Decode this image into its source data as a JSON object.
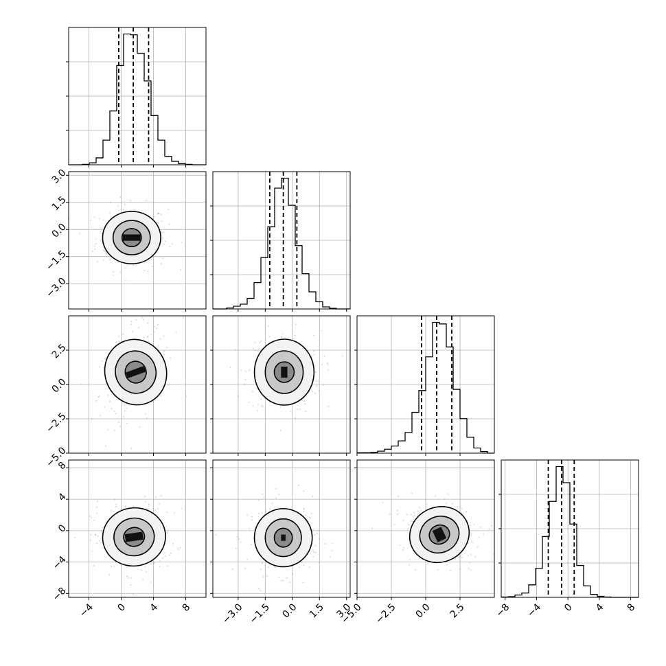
{
  "chart_data": {
    "type": "corner",
    "parameters": [
      {
        "range": [
          -6.5,
          10.5
        ],
        "ticks": [
          -4,
          0,
          4,
          8
        ],
        "tick_labels": [
          "−4",
          "0",
          "4",
          "8"
        ],
        "quantiles": [
          -0.3,
          1.5,
          3.4
        ],
        "center": 1.5,
        "sigma": 1.9
      },
      {
        "range": [
          -4.4,
          3.2
        ],
        "ticks": [
          -3.0,
          -1.5,
          0.0,
          1.5,
          3.0
        ],
        "tick_labels": [
          "−3.0",
          "−1.5",
          "0.0",
          "1.5",
          "3.0"
        ],
        "quantiles": [
          -1.25,
          -0.5,
          0.25
        ],
        "center": -0.5,
        "sigma": 0.75
      },
      {
        "range": [
          -5.0,
          5.0
        ],
        "ticks": [
          -5.0,
          -2.5,
          0.0,
          2.5
        ],
        "tick_labels": [
          "−5.0",
          "−2.5",
          "0.0",
          "2.5"
        ],
        "quantiles": [
          -0.3,
          0.8,
          1.9
        ],
        "center": 0.8,
        "sigma": 1.1
      },
      {
        "range": [
          -8.5,
          9.0
        ],
        "ticks": [
          -8,
          -4,
          0,
          4,
          8
        ],
        "tick_labels": [
          "−8",
          "−4",
          "0",
          "4",
          "8"
        ],
        "quantiles": [
          -2.5,
          -0.8,
          0.8
        ],
        "center": -0.8,
        "sigma": 1.7
      }
    ],
    "histograms": [
      {
        "bins_edges": [
          -6.5,
          -5.65,
          -4.8,
          -3.95,
          -3.1,
          -2.25,
          -1.4,
          -0.55,
          0.3,
          1.15,
          2.0,
          2.85,
          3.7,
          4.55,
          5.4,
          6.25,
          7.1,
          7.95,
          8.8,
          9.65,
          10.5
        ],
        "counts": [
          0,
          0,
          1,
          5,
          18,
          64,
          140,
          258,
          340,
          338,
          290,
          218,
          128,
          64,
          22,
          9,
          3,
          1,
          0,
          0
        ]
      },
      {
        "bins_edges": [
          -4.4,
          -4.02,
          -3.64,
          -3.26,
          -2.88,
          -2.5,
          -2.12,
          -1.74,
          -1.36,
          -0.98,
          -0.6,
          -0.22,
          0.16,
          0.54,
          0.92,
          1.3,
          1.68,
          2.06,
          2.44,
          2.82,
          3.2
        ],
        "counts": [
          0,
          0,
          3,
          8,
          14,
          31,
          77,
          150,
          240,
          353,
          382,
          303,
          185,
          103,
          50,
          21,
          6,
          2,
          0,
          0
        ]
      },
      {
        "bins_edges": [
          -5.0,
          -4.5,
          -4.0,
          -3.5,
          -3.0,
          -2.5,
          -2.0,
          -1.5,
          -1.0,
          -0.5,
          0.0,
          0.5,
          1.0,
          1.5,
          2.0,
          2.5,
          3.0,
          3.5,
          4.0,
          4.5,
          5.0
        ],
        "counts": [
          1,
          1,
          2,
          5,
          10,
          18,
          31,
          52,
          103,
          158,
          243,
          330,
          326,
          268,
          161,
          87,
          40,
          13,
          4,
          0
        ]
      },
      {
        "bins_edges": [
          -8.5,
          -7.625,
          -6.75,
          -5.875,
          -5.0,
          -4.125,
          -3.25,
          -2.375,
          -1.5,
          -0.625,
          0.25,
          1.125,
          2.0,
          2.875,
          3.75,
          4.625,
          5.5,
          6.375,
          7.25,
          8.125,
          9.0
        ],
        "counts": [
          1,
          2,
          7,
          13,
          38,
          88,
          185,
          292,
          398,
          349,
          223,
          97,
          35,
          9,
          3,
          1,
          0,
          0,
          0,
          0
        ]
      }
    ],
    "pairs": [
      {
        "x": 0,
        "y": 1,
        "cx": 1.3,
        "cy": -0.45,
        "rx": [
          3.6,
          2.3,
          1.2
        ],
        "ry": [
          1.45,
          0.95,
          0.5
        ],
        "rot": 0,
        "core_w": 2.2,
        "core_h": 0.35
      },
      {
        "x": 0,
        "y": 2,
        "cx": 1.8,
        "cy": 0.9,
        "rx": [
          3.8,
          2.5,
          1.3
        ],
        "ry": [
          2.4,
          1.55,
          0.8
        ],
        "rot": 20,
        "core_w": 2.4,
        "core_h": 0.45
      },
      {
        "x": 1,
        "y": 2,
        "cx": -0.45,
        "cy": 0.9,
        "rx": [
          1.65,
          1.05,
          0.55
        ],
        "ry": [
          2.4,
          1.55,
          0.75
        ],
        "rot": 0,
        "core_w": 0.35,
        "core_h": 0.8
      },
      {
        "x": 0,
        "y": 3,
        "cx": 1.6,
        "cy": -0.8,
        "rx": [
          3.9,
          2.5,
          1.3
        ],
        "ry": [
          3.7,
          2.4,
          1.2
        ],
        "rot": 8,
        "core_w": 2.2,
        "core_h": 1.0
      },
      {
        "x": 1,
        "y": 3,
        "cx": -0.5,
        "cy": -0.9,
        "rx": [
          1.6,
          1.0,
          0.5
        ],
        "ry": [
          3.7,
          2.4,
          1.2
        ],
        "rot": 0,
        "core_w": 0.25,
        "core_h": 0.8
      },
      {
        "x": 2,
        "y": 3,
        "cx": 1.0,
        "cy": -0.5,
        "rx": [
          2.2,
          1.45,
          0.75
        ],
        "ry": [
          3.5,
          2.3,
          1.2
        ],
        "rot": 25,
        "core_w": 0.7,
        "core_h": 1.6
      }
    ],
    "grid": true,
    "title": "",
    "xlabel": "",
    "ylabel": ""
  }
}
